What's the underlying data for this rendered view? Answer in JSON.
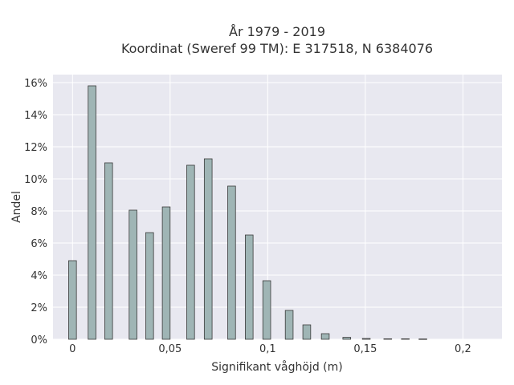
{
  "chart_data": {
    "type": "bar",
    "title": "År 1979 - 2019",
    "subtitle": "Koordinat (Sweref 99 TM): E 317518, N 6384076",
    "xlabel": "Signifikant våghöjd (m)",
    "ylabel": "Andel",
    "xlim": [
      -0.01,
      0.22
    ],
    "ylim": [
      0,
      16.5
    ],
    "x_ticks": [
      {
        "value": 0,
        "label": "0"
      },
      {
        "value": 0.05,
        "label": "0,05"
      },
      {
        "value": 0.1,
        "label": "0,1"
      },
      {
        "value": 0.15,
        "label": "0,15"
      },
      {
        "value": 0.2,
        "label": "0,2"
      }
    ],
    "y_ticks": [
      {
        "value": 0,
        "label": "0%"
      },
      {
        "value": 2,
        "label": "2%"
      },
      {
        "value": 4,
        "label": "4%"
      },
      {
        "value": 6,
        "label": "6%"
      },
      {
        "value": 8,
        "label": "8%"
      },
      {
        "value": 10,
        "label": "10%"
      },
      {
        "value": 12,
        "label": "12%"
      },
      {
        "value": 14,
        "label": "14%"
      },
      {
        "value": 16,
        "label": "16%"
      }
    ],
    "grid": true,
    "bar_color": "#9fb5b5",
    "bar_edge_color": "#3a3a3a",
    "plot_background": "#e8e8f0",
    "x": [
      0.0,
      0.01,
      0.0185,
      0.031,
      0.0395,
      0.048,
      0.0605,
      0.0695,
      0.0815,
      0.0905,
      0.0995,
      0.111,
      0.12,
      0.1295,
      0.1405,
      0.1505,
      0.1615,
      0.1705,
      0.1795
    ],
    "values": [
      4.9,
      15.8,
      11.0,
      8.05,
      6.65,
      8.25,
      10.85,
      11.25,
      9.55,
      6.5,
      3.65,
      1.8,
      0.9,
      0.35,
      0.12,
      0.05,
      0.03,
      0.03,
      0.02
    ]
  }
}
